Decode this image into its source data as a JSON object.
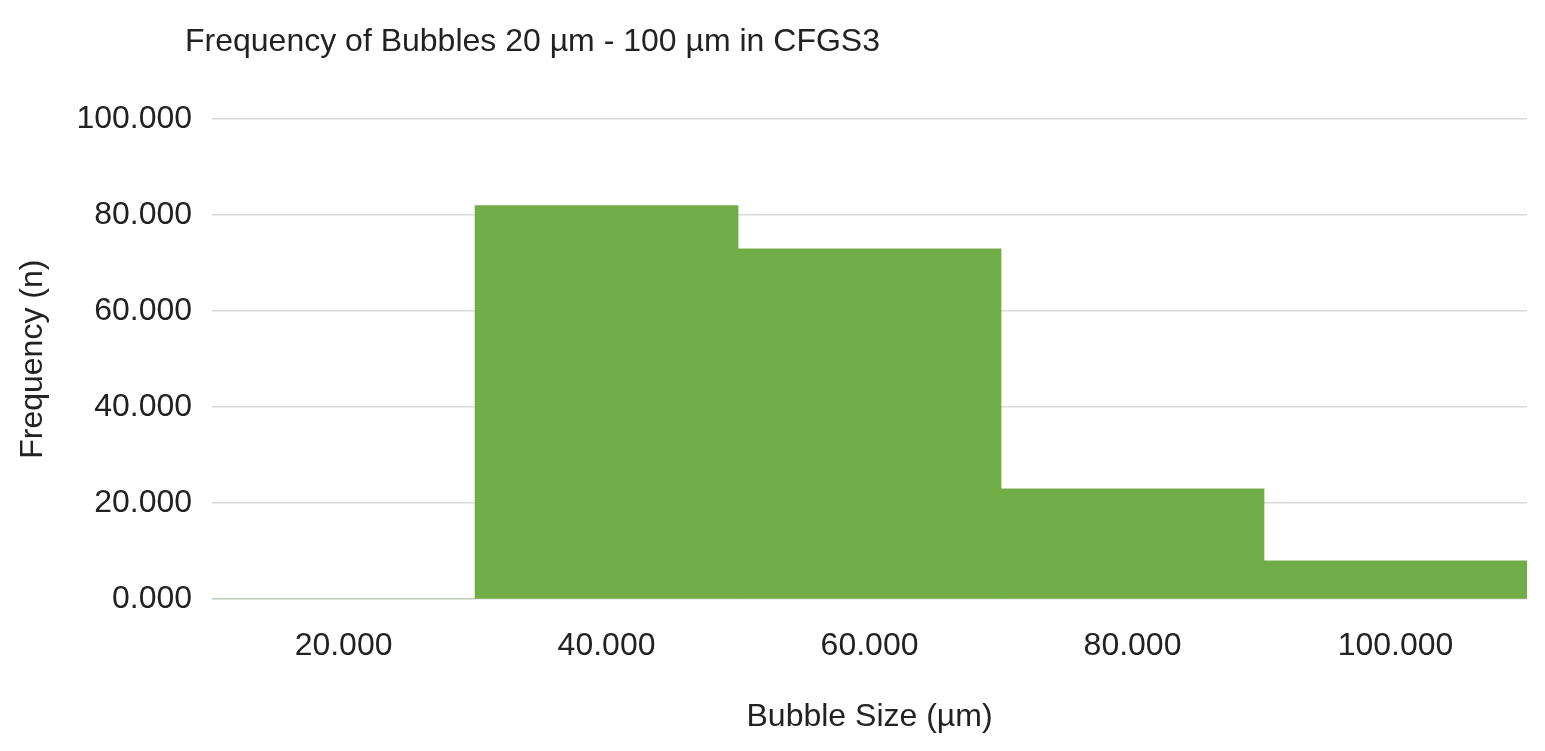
{
  "chart_data": {
    "type": "bar",
    "title": "Frequency of Bubbles 20 µm - 100 µm in CFGS3",
    "xlabel": "Bubble Size (µm)",
    "ylabel": "Frequency (n)",
    "categories": [
      "20.000",
      "40.000",
      "60.000",
      "80.000",
      "100.000"
    ],
    "values": [
      0,
      82,
      73,
      23,
      8
    ],
    "color": "#70ad47",
    "ylim": [
      0,
      100
    ],
    "yticks": [
      {
        "value": 0,
        "label": "0.000"
      },
      {
        "value": 20,
        "label": "20.000"
      },
      {
        "value": 40,
        "label": "40.000"
      },
      {
        "value": 60,
        "label": "60.000"
      },
      {
        "value": 80,
        "label": "80.000"
      },
      {
        "value": 100,
        "label": "100.000"
      }
    ],
    "grid": "y",
    "legend": false
  }
}
